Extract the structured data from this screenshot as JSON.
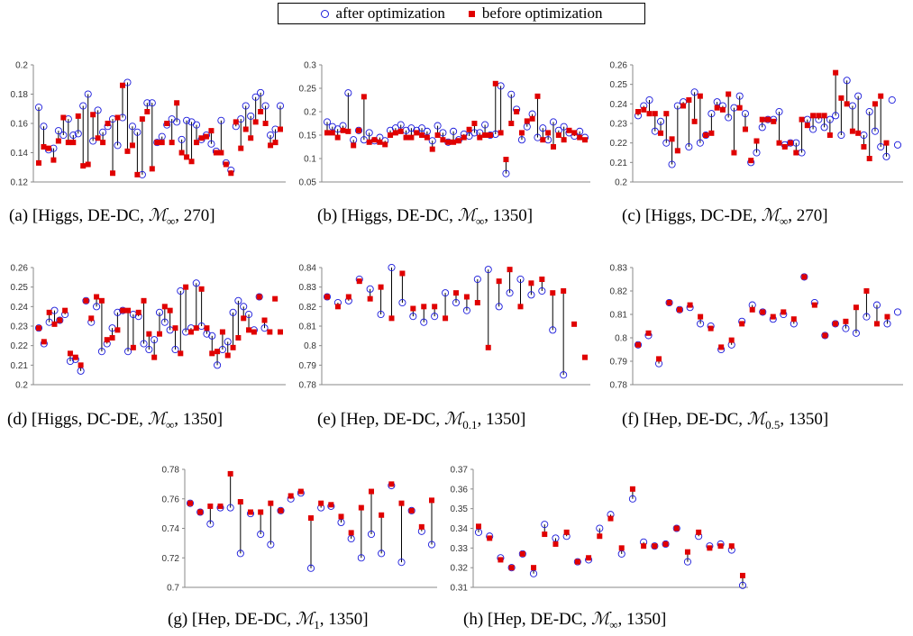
{
  "legend": {
    "after_label": "after optimization",
    "before_label": "before optimization",
    "after_color": "#1a1adb",
    "before_color": "#e00000"
  },
  "chart_data": [
    {
      "type": "scatter",
      "title": "",
      "caption_prefix": "(a) [Higgs, DE-DC,",
      "caption_math": "ℳ",
      "caption_sub": "∞",
      "caption_suffix": ", 270]",
      "ylim": [
        0.12,
        0.2
      ],
      "yticks": [
        "0.12",
        "0.14",
        "0.16",
        "0.18",
        "0.2"
      ],
      "tick_values": [
        0.12,
        0.14,
        0.16,
        0.18,
        0.2
      ],
      "series": [
        {
          "name": "after optimization",
          "values": [
            0.171,
            0.158,
            0.142,
            0.143,
            0.155,
            0.152,
            0.163,
            0.152,
            0.153,
            0.172,
            0.18,
            0.148,
            0.169,
            0.154,
            0.158,
            0.163,
            0.145,
            0.164,
            0.188,
            0.158,
            0.154,
            0.125,
            0.174,
            0.174,
            0.147,
            0.151,
            0.159,
            0.163,
            0.161,
            0.149,
            0.162,
            0.161,
            0.159,
            0.149,
            0.152,
            0.146,
            0.141,
            0.162,
            0.133,
            0.128,
            0.158,
            0.163,
            0.172,
            0.165,
            0.178,
            0.181,
            0.172,
            0.152,
            0.156,
            0.172
          ]
        },
        {
          "name": "before optimization",
          "values": [
            0.133,
            0.144,
            0.143,
            0.135,
            0.148,
            0.164,
            0.147,
            0.147,
            0.165,
            0.131,
            0.132,
            0.166,
            0.15,
            0.147,
            0.16,
            0.126,
            0.164,
            0.186,
            0.141,
            0.145,
            0.125,
            0.163,
            0.168,
            0.129,
            0.147,
            0.147,
            0.16,
            0.147,
            0.174,
            0.14,
            0.137,
            0.134,
            0.147,
            0.15,
            0.151,
            0.155,
            0.14,
            0.14,
            0.132,
            0.126,
            0.161,
            0.143,
            0.156,
            0.15,
            0.161,
            0.168,
            0.16,
            0.145,
            0.147,
            0.156
          ]
        }
      ]
    },
    {
      "type": "scatter",
      "title": "",
      "caption_prefix": "(b) [Higgs, DE-DC,",
      "caption_math": "ℳ",
      "caption_sub": "∞",
      "caption_suffix": ", 1350]",
      "ylim": [
        0.05,
        0.3
      ],
      "yticks": [
        "0.05",
        "0.1",
        "0.15",
        "0.2",
        "0.25",
        "0.3"
      ],
      "tick_values": [
        0.05,
        0.1,
        0.15,
        0.2,
        0.25,
        0.3
      ],
      "series": [
        {
          "name": "after optimization",
          "values": [
            0.178,
            0.168,
            0.163,
            0.17,
            0.24,
            0.14,
            0.16,
            0.14,
            0.155,
            0.138,
            0.145,
            0.138,
            0.16,
            0.165,
            0.172,
            0.16,
            0.165,
            0.16,
            0.165,
            0.158,
            0.138,
            0.17,
            0.155,
            0.135,
            0.158,
            0.14,
            0.152,
            0.148,
            0.155,
            0.155,
            0.172,
            0.15,
            0.152,
            0.255,
            0.068,
            0.237,
            0.205,
            0.14,
            0.168,
            0.195,
            0.145,
            0.165,
            0.14,
            0.178,
            0.16,
            0.168,
            0.155,
            0.148,
            0.158,
            0.145
          ]
        },
        {
          "name": "before optimization",
          "values": [
            0.155,
            0.155,
            0.145,
            0.16,
            0.158,
            0.128,
            0.16,
            0.232,
            0.135,
            0.14,
            0.135,
            0.13,
            0.15,
            0.155,
            0.158,
            0.145,
            0.145,
            0.155,
            0.15,
            0.145,
            0.12,
            0.15,
            0.14,
            0.135,
            0.135,
            0.138,
            0.145,
            0.162,
            0.175,
            0.145,
            0.15,
            0.15,
            0.26,
            0.155,
            0.098,
            0.175,
            0.2,
            0.155,
            0.18,
            0.185,
            0.233,
            0.14,
            0.155,
            0.125,
            0.15,
            0.14,
            0.16,
            0.155,
            0.145,
            0.14
          ]
        }
      ]
    },
    {
      "type": "scatter",
      "title": "",
      "caption_prefix": "(c) [Higgs, DC-DE,",
      "caption_math": "ℳ",
      "caption_sub": "∞",
      "caption_suffix": ", 270]",
      "ylim": [
        0.2,
        0.26
      ],
      "yticks": [
        "0.2",
        "0.21",
        "0.22",
        "0.23",
        "0.24",
        "0.25",
        "0.26"
      ],
      "tick_values": [
        0.2,
        0.21,
        0.22,
        0.23,
        0.24,
        0.25,
        0.26
      ],
      "series": [
        {
          "name": "after optimization",
          "values": [
            0.234,
            0.239,
            0.242,
            0.226,
            0.231,
            0.22,
            0.209,
            0.239,
            0.241,
            0.218,
            0.246,
            0.22,
            0.224,
            0.235,
            0.241,
            0.239,
            0.233,
            0.238,
            0.244,
            0.235,
            0.21,
            0.215,
            0.228,
            0.232,
            0.232,
            0.236,
            0.219,
            0.22,
            0.22,
            0.215,
            0.232,
            0.227,
            0.232,
            0.228,
            0.232,
            0.234,
            0.224,
            0.252,
            0.239,
            0.244,
            0.224,
            0.236,
            0.226,
            0.218,
            0.213,
            0.242,
            0.219
          ]
        },
        {
          "name": "before optimization",
          "values": [
            0.236,
            0.237,
            0.235,
            0.235,
            0.225,
            0.235,
            0.222,
            0.216,
            0.239,
            0.242,
            0.231,
            0.244,
            0.224,
            0.225,
            0.238,
            0.237,
            0.245,
            0.215,
            0.238,
            0.227,
            0.211,
            0.221,
            0.232,
            0.232,
            0.231,
            0.22,
            0.218,
            0.22,
            0.215,
            0.232,
            0.229,
            0.234,
            0.234,
            0.234,
            0.224,
            0.256,
            0.243,
            0.24,
            0.226,
            0.225,
            0.218,
            0.212,
            0.24,
            0.244,
            0.22
          ]
        }
      ]
    },
    {
      "type": "scatter",
      "title": "",
      "caption_prefix": "(d) [Higgs, DC-DE,",
      "caption_math": "ℳ",
      "caption_sub": "∞",
      "caption_suffix": ", 1350]",
      "ylim": [
        0.2,
        0.26
      ],
      "yticks": [
        "0.2",
        "0.21",
        "0.22",
        "0.23",
        "0.24",
        "0.25",
        "0.26"
      ],
      "tick_values": [
        0.2,
        0.21,
        0.22,
        0.23,
        0.24,
        0.25,
        0.26
      ],
      "series": [
        {
          "name": "after optimization",
          "values": [
            0.229,
            0.221,
            0.232,
            0.238,
            0.233,
            0.236,
            0.212,
            0.213,
            0.207,
            0.243,
            0.232,
            0.24,
            0.217,
            0.221,
            0.229,
            0.237,
            0.238,
            0.217,
            0.236,
            0.235,
            0.221,
            0.218,
            0.223,
            0.237,
            0.232,
            0.228,
            0.218,
            0.248,
            0.227,
            0.229,
            0.252,
            0.23,
            0.226,
            0.225,
            0.21,
            0.218,
            0.222,
            0.237,
            0.243,
            0.24,
            0.236,
            0.228,
            0.245,
            0.229
          ]
        },
        {
          "name": "before optimization",
          "values": [
            0.229,
            0.222,
            0.237,
            0.231,
            0.233,
            0.238,
            0.216,
            0.214,
            0.21,
            0.243,
            0.234,
            0.245,
            0.243,
            0.223,
            0.224,
            0.228,
            0.238,
            0.238,
            0.219,
            0.237,
            0.243,
            0.226,
            0.214,
            0.226,
            0.24,
            0.238,
            0.229,
            0.216,
            0.25,
            0.227,
            0.229,
            0.249,
            0.229,
            0.216,
            0.217,
            0.227,
            0.215,
            0.219,
            0.224,
            0.234,
            0.228,
            0.227,
            0.245,
            0.233,
            0.227,
            0.244,
            0.227
          ]
        }
      ]
    },
    {
      "type": "scatter",
      "title": "",
      "caption_prefix": "(e) [Hep, DE-DC,",
      "caption_math": "ℳ",
      "caption_sub": "0.1",
      "caption_suffix": ", 1350]",
      "ylim": [
        0.78,
        0.84
      ],
      "yticks": [
        "0.78",
        "0.79",
        "0.8",
        "0.81",
        "0.82",
        "0.83",
        "0.84"
      ],
      "tick_values": [
        0.78,
        0.79,
        0.8,
        0.81,
        0.82,
        0.83,
        0.84
      ],
      "series": [
        {
          "name": "after optimization",
          "values": [
            0.825,
            0.822,
            0.823,
            0.834,
            0.829,
            0.816,
            0.84,
            0.822,
            0.815,
            0.812,
            0.815,
            0.827,
            0.822,
            0.818,
            0.834,
            0.839,
            0.82,
            0.827,
            0.834,
            0.826,
            0.828,
            0.808,
            0.785
          ]
        },
        {
          "name": "before optimization",
          "values": [
            0.825,
            0.82,
            0.825,
            0.833,
            0.824,
            0.83,
            0.814,
            0.837,
            0.819,
            0.82,
            0.82,
            0.814,
            0.827,
            0.825,
            0.822,
            0.799,
            0.833,
            0.839,
            0.82,
            0.832,
            0.834,
            0.827,
            0.828,
            0.811,
            0.794
          ]
        }
      ]
    },
    {
      "type": "scatter",
      "title": "",
      "caption_prefix": "(f) [Hep, DE-DC,",
      "caption_math": "ℳ",
      "caption_sub": "0.5",
      "caption_suffix": ", 1350]",
      "ylim": [
        0.78,
        0.83
      ],
      "yticks": [
        "0.78",
        "0.79",
        "0.8",
        "0.81",
        "0.82",
        "0.83"
      ],
      "tick_values": [
        0.78,
        0.79,
        0.8,
        0.81,
        0.82,
        0.83
      ],
      "series": [
        {
          "name": "after optimization",
          "values": [
            0.797,
            0.801,
            0.789,
            0.815,
            0.812,
            0.813,
            0.806,
            0.805,
            0.795,
            0.797,
            0.807,
            0.814,
            0.811,
            0.808,
            0.81,
            0.806,
            0.826,
            0.815,
            0.801,
            0.806,
            0.804,
            0.802,
            0.809,
            0.814,
            0.806,
            0.811
          ]
        },
        {
          "name": "before optimization",
          "values": [
            0.797,
            0.802,
            0.791,
            0.815,
            0.812,
            0.814,
            0.809,
            0.804,
            0.796,
            0.799,
            0.806,
            0.812,
            0.811,
            0.809,
            0.811,
            0.808,
            0.826,
            0.814,
            0.801,
            0.806,
            0.807,
            0.813,
            0.82,
            0.806,
            0.809
          ]
        }
      ]
    },
    {
      "type": "scatter",
      "title": "",
      "caption_prefix": "(g) [Hep, DE-DC,",
      "caption_math": "ℳ",
      "caption_sub": "1",
      "caption_suffix": ", 1350]",
      "ylim": [
        0.7,
        0.78
      ],
      "yticks": [
        "0.7",
        "0.72",
        "0.74",
        "0.76",
        "0.78"
      ],
      "tick_values": [
        0.7,
        0.72,
        0.74,
        0.76,
        0.78
      ],
      "series": [
        {
          "name": "after optimization",
          "values": [
            0.757,
            0.751,
            0.743,
            0.754,
            0.754,
            0.723,
            0.75,
            0.736,
            0.729,
            0.752,
            0.76,
            0.764,
            0.713,
            0.754,
            0.755,
            0.744,
            0.733,
            0.72,
            0.736,
            0.723,
            0.769,
            0.717,
            0.752,
            0.738,
            0.729
          ]
        },
        {
          "name": "before optimization",
          "values": [
            0.757,
            0.751,
            0.755,
            0.755,
            0.777,
            0.758,
            0.751,
            0.751,
            0.757,
            0.752,
            0.762,
            0.765,
            0.747,
            0.757,
            0.756,
            0.748,
            0.737,
            0.754,
            0.765,
            0.749,
            0.77,
            0.757,
            0.752,
            0.741,
            0.759
          ]
        }
      ]
    },
    {
      "type": "scatter",
      "title": "",
      "caption_prefix": "(h) [Hep, DE-DC,",
      "caption_math": "ℳ",
      "caption_sub": "∞",
      "caption_suffix": ", 1350]",
      "ylim": [
        0.31,
        0.37
      ],
      "yticks": [
        "0.31",
        "0.32",
        "0.33",
        "0.34",
        "0.35",
        "0.36",
        "0.37"
      ],
      "tick_values": [
        0.31,
        0.32,
        0.33,
        0.34,
        0.35,
        0.36,
        0.37
      ],
      "series": [
        {
          "name": "after optimization",
          "values": [
            0.338,
            0.336,
            0.325,
            0.32,
            0.327,
            0.317,
            0.342,
            0.335,
            0.336,
            0.323,
            0.324,
            0.34,
            0.347,
            0.327,
            0.355,
            0.333,
            0.331,
            0.332,
            0.34,
            0.323,
            0.336,
            0.331,
            0.332,
            0.329,
            0.311
          ]
        },
        {
          "name": "before optimization",
          "values": [
            0.341,
            0.335,
            0.324,
            0.32,
            0.327,
            0.32,
            0.337,
            0.332,
            0.338,
            0.323,
            0.325,
            0.336,
            0.345,
            0.33,
            0.36,
            0.331,
            0.331,
            0.332,
            0.34,
            0.328,
            0.338,
            0.33,
            0.331,
            0.331,
            0.316
          ]
        }
      ]
    }
  ]
}
